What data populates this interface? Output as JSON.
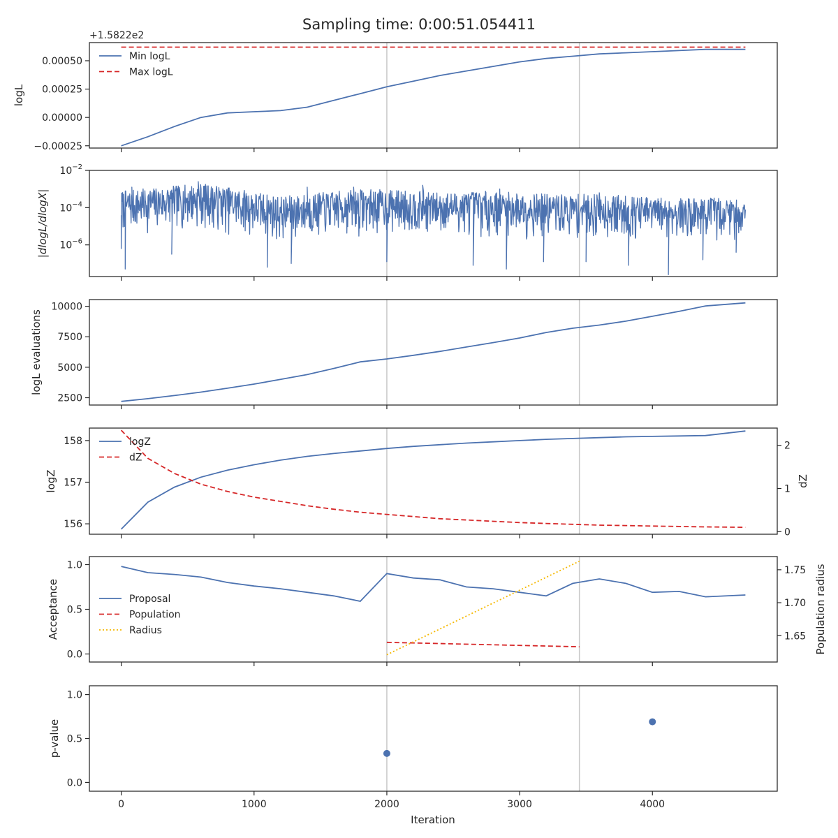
{
  "title": "Sampling time: 0:00:51.054411",
  "xlabel": "Iteration",
  "x_ticks": [
    0,
    1000,
    2000,
    3000,
    4000
  ],
  "x_tick_labels": [
    "0",
    "1000",
    "2000",
    "3000",
    "4000"
  ],
  "x_range": [
    -240,
    4940
  ],
  "vlines": [
    2000,
    3450
  ],
  "colors": {
    "blue": "#4c72b0",
    "red": "#d62728",
    "yellow": "#f5b800",
    "vline": "#c8c8c8",
    "axis": "#262626"
  },
  "chart_data": [
    {
      "id": "logl",
      "type": "line",
      "ylabel": "logL",
      "offset_label": "+1.5822e2",
      "ylim": [
        -0.00027,
        0.00066
      ],
      "y_ticks": [
        -0.00025,
        0,
        0.00025,
        0.0005
      ],
      "y_tick_labels": [
        "−0.00025",
        "0.00000",
        "0.00025",
        "0.00050"
      ],
      "legend_position": "upper-left",
      "series": [
        {
          "name": "Min logL",
          "style": "solid",
          "color": "blue",
          "x": [
            0,
            200,
            400,
            600,
            800,
            1000,
            1200,
            1400,
            1600,
            1800,
            2000,
            2200,
            2400,
            2600,
            2800,
            3000,
            3200,
            3400,
            3600,
            3800,
            4000,
            4200,
            4400,
            4700
          ],
          "y": [
            -0.00025,
            -0.00017,
            -8e-05,
            0.0,
            4e-05,
            5e-05,
            6e-05,
            9e-05,
            0.00015,
            0.00021,
            0.00027,
            0.00032,
            0.00037,
            0.00041,
            0.00045,
            0.00049,
            0.00052,
            0.00054,
            0.00056,
            0.00057,
            0.00058,
            0.00059,
            0.0006,
            0.0006
          ]
        },
        {
          "name": "Max logL",
          "style": "dashed",
          "color": "red",
          "x": [
            0,
            4700
          ],
          "y": [
            0.00062,
            0.00062
          ]
        }
      ]
    },
    {
      "id": "dlogl",
      "type": "line",
      "ylabel": "|dlogL/dlogX|",
      "yscale": "log",
      "ylim_log10": [
        -7.7,
        -2.0
      ],
      "y_ticks_log10": [
        -6,
        -4,
        -2
      ],
      "y_tick_labels": [
        {
          "base": "10",
          "exp": "−6"
        },
        {
          "base": "10",
          "exp": "−4"
        },
        {
          "base": "10",
          "exp": "−2"
        }
      ],
      "series": [
        {
          "name": "",
          "color": "blue",
          "x_start": 0,
          "x_end": 4700,
          "envelope_x": [
            0,
            300,
            600,
            900,
            1200,
            1500,
            1800,
            2100,
            2400,
            2700,
            3000,
            3300,
            3600,
            3900,
            4200,
            4500,
            4700
          ],
          "envelope_upper_log10": [
            -3.1,
            -2.9,
            -2.7,
            -3.0,
            -3.4,
            -3.2,
            -3.0,
            -3.05,
            -3.2,
            -3.1,
            -3.2,
            -3.3,
            -3.25,
            -3.4,
            -3.5,
            -3.45,
            -3.6
          ],
          "envelope_lower_log10": [
            -5.5,
            -5.4,
            -5.2,
            -5.6,
            -6.0,
            -5.7,
            -5.6,
            -5.5,
            -5.6,
            -5.6,
            -5.7,
            -5.8,
            -5.8,
            -5.9,
            -5.8,
            -5.9,
            -5.7
          ],
          "spikes_down": [
            [
              0,
              -6.2
            ],
            [
              30,
              -7.3
            ],
            [
              380,
              -6.5
            ],
            [
              1100,
              -7.2
            ],
            [
              1280,
              -7.0
            ],
            [
              2000,
              -6.9
            ],
            [
              2650,
              -7.1
            ],
            [
              2900,
              -7.3
            ],
            [
              3180,
              -6.9
            ],
            [
              3500,
              -6.9
            ],
            [
              3820,
              -7.1
            ],
            [
              4120,
              -7.6
            ],
            [
              4380,
              -6.8
            ],
            [
              4630,
              -6.4
            ]
          ],
          "spikes_up": [
            [
              80,
              -2.9
            ],
            [
              580,
              -2.6
            ],
            [
              1400,
              -2.9
            ],
            [
              1750,
              -2.9
            ],
            [
              2270,
              -2.8
            ],
            [
              2850,
              -3.0
            ],
            [
              3600,
              -3.2
            ]
          ],
          "samples": 1400,
          "seed": 7
        }
      ]
    },
    {
      "id": "evals",
      "type": "line",
      "ylabel": "logL evaluations",
      "ylim": [
        1900,
        10550
      ],
      "y_ticks": [
        2500,
        5000,
        7500,
        10000
      ],
      "y_tick_labels": [
        "2500",
        "5000",
        "7500",
        "10000"
      ],
      "series": [
        {
          "name": "",
          "style": "solid",
          "color": "blue",
          "x": [
            0,
            200,
            400,
            600,
            800,
            1000,
            1200,
            1400,
            1600,
            1800,
            2000,
            2200,
            2400,
            2600,
            2800,
            3000,
            3200,
            3400,
            3600,
            3800,
            4000,
            4200,
            4400,
            4700
          ],
          "y": [
            2200,
            2420,
            2680,
            2960,
            3280,
            3620,
            4000,
            4400,
            4900,
            5440,
            5680,
            5980,
            6300,
            6660,
            7020,
            7400,
            7850,
            8200,
            8460,
            8780,
            9180,
            9580,
            10030,
            10280
          ]
        }
      ]
    },
    {
      "id": "logz",
      "type": "line",
      "ylabel": "logZ",
      "ylabel_right": "dZ",
      "ylim": [
        155.75,
        158.3
      ],
      "y_ticks": [
        156,
        157,
        158
      ],
      "y_tick_labels": [
        "156",
        "157",
        "158"
      ],
      "ylim_right": [
        -0.06,
        2.4
      ],
      "y_ticks_right": [
        0,
        1,
        2
      ],
      "y_tick_labels_right": [
        "0",
        "1",
        "2"
      ],
      "legend_position": "upper-left",
      "series": [
        {
          "name": "logZ",
          "style": "solid",
          "color": "blue",
          "axis": "left",
          "x": [
            0,
            200,
            400,
            600,
            800,
            1000,
            1200,
            1400,
            1600,
            1800,
            2000,
            2200,
            2400,
            2600,
            2800,
            3000,
            3200,
            3400,
            3600,
            3800,
            4000,
            4200,
            4400,
            4700
          ],
          "y": [
            155.87,
            156.52,
            156.88,
            157.12,
            157.29,
            157.42,
            157.53,
            157.62,
            157.69,
            157.75,
            157.81,
            157.86,
            157.9,
            157.94,
            157.97,
            158.0,
            158.03,
            158.05,
            158.07,
            158.09,
            158.1,
            158.11,
            158.12,
            158.23
          ]
        },
        {
          "name": "dZ",
          "style": "dashed",
          "color": "red",
          "axis": "right",
          "x": [
            0,
            200,
            400,
            600,
            800,
            1000,
            1200,
            1400,
            1600,
            1800,
            2000,
            2200,
            2400,
            2600,
            2800,
            3000,
            3200,
            3400,
            3600,
            3800,
            4000,
            4200,
            4400,
            4700
          ],
          "y": [
            2.35,
            1.7,
            1.35,
            1.1,
            0.93,
            0.8,
            0.7,
            0.6,
            0.52,
            0.45,
            0.4,
            0.35,
            0.3,
            0.27,
            0.24,
            0.21,
            0.19,
            0.17,
            0.15,
            0.14,
            0.13,
            0.12,
            0.11,
            0.1
          ]
        }
      ]
    },
    {
      "id": "acceptance",
      "type": "line",
      "ylabel": "Acceptance",
      "ylabel_right": "Population radius",
      "ylim": [
        -0.09,
        1.09
      ],
      "y_ticks": [
        0,
        0.5,
        1
      ],
      "y_tick_labels": [
        "0.0",
        "0.5",
        "1.0"
      ],
      "ylim_right": [
        1.61,
        1.77
      ],
      "y_ticks_right": [
        1.65,
        1.7,
        1.75
      ],
      "y_tick_labels_right": [
        "1.65",
        "1.70",
        "1.75"
      ],
      "legend_position": "lower-left",
      "series": [
        {
          "name": "Proposal",
          "style": "solid",
          "color": "blue",
          "axis": "left",
          "x": [
            0,
            200,
            400,
            600,
            800,
            1000,
            1200,
            1400,
            1600,
            1800,
            2000,
            2200,
            2400,
            2600,
            2800,
            3000,
            3200,
            3400,
            3600,
            3800,
            4000,
            4200,
            4400,
            4700
          ],
          "y": [
            0.98,
            0.91,
            0.89,
            0.86,
            0.8,
            0.76,
            0.73,
            0.69,
            0.65,
            0.59,
            0.9,
            0.85,
            0.83,
            0.75,
            0.73,
            0.69,
            0.65,
            0.79,
            0.84,
            0.79,
            0.69,
            0.7,
            0.64,
            0.66
          ]
        },
        {
          "name": "Population",
          "style": "dashed",
          "color": "red",
          "axis": "left",
          "x": [
            2000,
            3450
          ],
          "y": [
            0.13,
            0.08
          ]
        },
        {
          "name": "Radius",
          "style": "dotted",
          "color": "yellow",
          "axis": "right",
          "x": [
            2000,
            3450
          ],
          "y": [
            1.621,
            1.763
          ]
        }
      ]
    },
    {
      "id": "pvalue",
      "type": "scatter",
      "ylabel": "p-value",
      "ylim": [
        -0.1,
        1.1
      ],
      "y_ticks": [
        0,
        0.5,
        1
      ],
      "y_tick_labels": [
        "0.0",
        "0.5",
        "1.0"
      ],
      "show_x_tick_labels": true,
      "series": [
        {
          "name": "",
          "color": "blue",
          "x": [
            2000,
            4000
          ],
          "y": [
            0.33,
            0.69
          ]
        }
      ]
    }
  ]
}
